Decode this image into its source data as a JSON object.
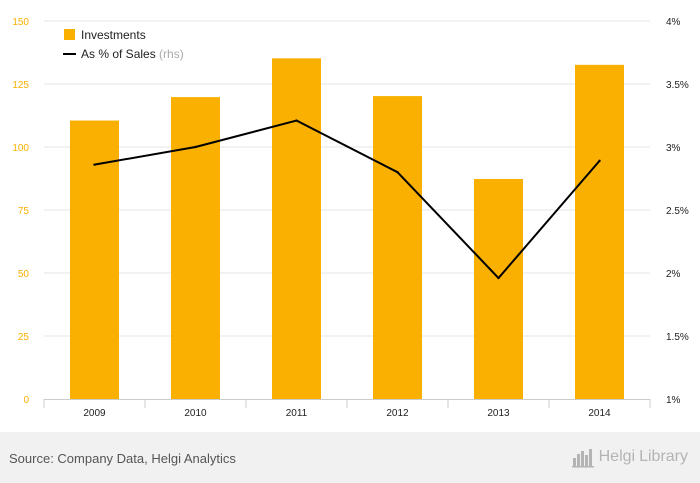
{
  "chart_data": {
    "type": "bar",
    "categories": [
      "2009",
      "2010",
      "2011",
      "2012",
      "2013",
      "2014"
    ],
    "series": [
      {
        "name": "Investments",
        "type": "bar",
        "axis": "left",
        "values": [
          110.5,
          119.8,
          135.2,
          120.2,
          87.3,
          132.6
        ]
      },
      {
        "name": "As % of Sales",
        "type": "line",
        "axis": "right",
        "values": [
          2.86,
          3.0,
          3.21,
          2.8,
          1.96,
          2.89
        ]
      }
    ],
    "legend": {
      "position": "top-left",
      "items": [
        {
          "label": "Investments",
          "suffix": ""
        },
        {
          "label": "As % of Sales",
          "suffix": "(rhs)"
        }
      ]
    },
    "y_left": {
      "ylim": [
        0,
        150
      ],
      "ticks": [
        0,
        25,
        50,
        75,
        100,
        125,
        150
      ],
      "tick_labels": [
        "0",
        "25",
        "50",
        "75",
        "100",
        "125",
        "150"
      ]
    },
    "y_right": {
      "ylim": [
        1,
        4
      ],
      "ticks": [
        1,
        1.5,
        2,
        2.5,
        3,
        3.5,
        4
      ],
      "tick_labels": [
        "1%",
        "1.5%",
        "2%",
        "2.5%",
        "3%",
        "3.5%",
        "4%"
      ]
    },
    "grid": true,
    "colors": {
      "bar": "#F9B000",
      "line": "#000000",
      "left_ticks": "#F9B000",
      "grid": "#e6e6e6"
    }
  },
  "footer": {
    "source": "Source: Company Data, Helgi Analytics",
    "brand_prefix": "Helgi",
    "brand_suffix": "Library",
    "brand_icon": "helgi-library-logo-icon"
  }
}
